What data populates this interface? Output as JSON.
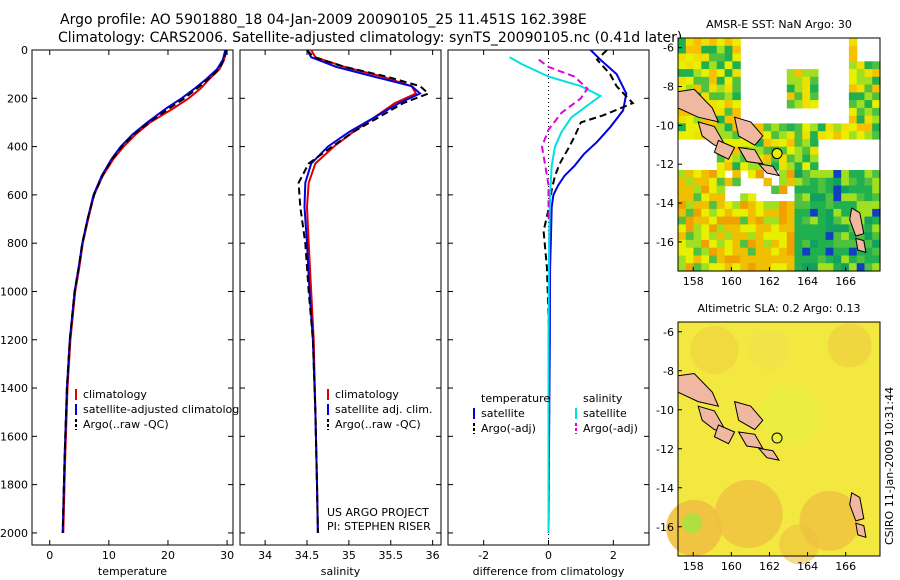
{
  "header": {
    "title_line1": "Argo profile: AO 5901880_18 04-Jan-2009 20090105_25 11.451S 162.398E",
    "title_line2": "Climatology: CARS2006. Satellite-adjusted climatology: synTS_20090105.nc (0.41d later)"
  },
  "chart_data": [
    {
      "type": "line",
      "name": "temperature-profile",
      "xlabel": "temperature",
      "ylabel": "",
      "xlim": [
        -3,
        31
      ],
      "ylim": [
        2050,
        0
      ],
      "xticks": [
        0,
        10,
        20,
        30
      ],
      "yticks": [
        0,
        200,
        400,
        600,
        800,
        1000,
        1200,
        1400,
        1600,
        1800,
        2000
      ],
      "legend": [
        "climatology",
        "satellite-adjusted climatology",
        "Argo(..raw -QC)"
      ],
      "series": [
        {
          "name": "climatology",
          "color": "#e00000",
          "x": [
            29.8,
            29.5,
            28.7,
            27.0,
            25.5,
            23.5,
            21.0,
            17.0,
            14.5,
            12.5,
            10.8,
            9.0,
            7.5,
            6.5,
            5.6,
            5.0,
            4.3,
            3.5,
            3.0,
            2.6,
            2.3
          ],
          "y": [
            0,
            40,
            80,
            120,
            160,
            200,
            240,
            300,
            350,
            400,
            450,
            520,
            600,
            700,
            800,
            900,
            1000,
            1200,
            1400,
            1700,
            2000
          ]
        },
        {
          "name": "satellite-adjusted climatology",
          "color": "#0000e0",
          "x": [
            29.7,
            29.3,
            28.3,
            26.5,
            24.5,
            22.3,
            19.8,
            16.5,
            14.0,
            12.0,
            10.5,
            8.8,
            7.4,
            6.4,
            5.5,
            4.9,
            4.2,
            3.4,
            2.9,
            2.5,
            2.2
          ],
          "y": [
            0,
            40,
            80,
            120,
            160,
            200,
            240,
            300,
            350,
            400,
            450,
            520,
            600,
            700,
            800,
            900,
            1000,
            1200,
            1400,
            1700,
            2000
          ]
        },
        {
          "name": "Argo(..raw -QC)",
          "color": "#000000",
          "dash": true,
          "x": [
            29.9,
            29.5,
            28.6,
            26.8,
            24.9,
            22.8,
            20.3,
            16.8,
            14.2,
            12.2,
            10.6,
            8.9,
            7.5,
            6.4,
            5.5,
            4.9,
            4.2,
            3.4,
            2.9,
            2.5,
            2.2
          ],
          "y": [
            0,
            40,
            80,
            120,
            160,
            200,
            240,
            300,
            350,
            400,
            450,
            520,
            600,
            700,
            800,
            900,
            1000,
            1200,
            1400,
            1700,
            2000
          ]
        }
      ]
    },
    {
      "type": "line",
      "name": "salinity-profile",
      "xlabel": "salinity",
      "xlim": [
        33.7,
        36.1
      ],
      "ylim": [
        2050,
        0
      ],
      "xticks": [
        34,
        34.5,
        35,
        35.5,
        36
      ],
      "legend": [
        "climatology",
        "satellite adj. clim.",
        "Argo(..raw -QC)"
      ],
      "series": [
        {
          "name": "climatology",
          "color": "#e00000",
          "x": [
            34.55,
            34.6,
            34.95,
            35.4,
            35.75,
            35.8,
            35.55,
            35.3,
            35.05,
            34.82,
            34.6,
            34.52,
            34.5,
            34.52,
            34.55,
            34.58,
            34.6,
            34.62,
            34.63
          ],
          "y": [
            0,
            30,
            70,
            110,
            150,
            180,
            220,
            280,
            340,
            400,
            470,
            550,
            650,
            800,
            1000,
            1200,
            1500,
            1800,
            2000
          ]
        },
        {
          "name": "satellite adj. clim.",
          "color": "#0000e0",
          "x": [
            34.5,
            34.55,
            34.85,
            35.3,
            35.75,
            35.85,
            35.6,
            35.3,
            35.0,
            34.75,
            34.55,
            34.48,
            34.47,
            34.5,
            34.53,
            34.57,
            34.6,
            34.62,
            34.63
          ],
          "y": [
            0,
            30,
            70,
            110,
            150,
            180,
            220,
            280,
            340,
            400,
            470,
            550,
            650,
            800,
            1000,
            1200,
            1500,
            1800,
            2000
          ]
        },
        {
          "name": "Argo(..raw -QC)",
          "color": "#000000",
          "dash": true,
          "x": [
            34.5,
            34.58,
            34.95,
            35.45,
            35.85,
            35.95,
            35.65,
            35.35,
            35.05,
            34.8,
            34.52,
            34.4,
            34.42,
            34.48,
            34.52,
            34.57,
            34.6,
            34.62,
            34.63
          ],
          "y": [
            0,
            30,
            70,
            110,
            150,
            180,
            220,
            280,
            340,
            400,
            470,
            550,
            650,
            800,
            1000,
            1200,
            1500,
            1800,
            2000
          ]
        }
      ]
    },
    {
      "type": "line",
      "name": "difference-profile",
      "xlabel": "difference from climatology",
      "xlim": [
        -3.1,
        3.1
      ],
      "ylim": [
        2050,
        0
      ],
      "xticks": [
        -2,
        0,
        2
      ],
      "legend_titles": [
        "temperature",
        "salinity"
      ],
      "legend": [
        "satellite",
        "Argo(-adj)",
        "satellite",
        "Argo(-adj)"
      ],
      "series": [
        {
          "name": "temperature satellite",
          "color": "#0000e0",
          "x": [
            1.3,
            1.6,
            2.1,
            2.4,
            2.3,
            1.9,
            1.5,
            1.1,
            0.8,
            0.5,
            0.3,
            0.15,
            0.1,
            0.08,
            0.05,
            0.04,
            0.02,
            0.0
          ],
          "y": [
            0,
            40,
            100,
            180,
            250,
            320,
            380,
            430,
            480,
            520,
            560,
            600,
            650,
            750,
            900,
            1200,
            1600,
            2000
          ]
        },
        {
          "name": "temperature Argo(-adj)",
          "color": "#000000",
          "dash": true,
          "x": [
            1.8,
            1.5,
            1.9,
            2.1,
            2.6,
            1.7,
            1.0,
            0.8,
            0.6,
            0.35,
            0.2,
            0.1,
            0.0,
            -0.15,
            -0.05,
            0.0,
            0.02,
            0.0
          ],
          "y": [
            0,
            40,
            100,
            150,
            220,
            270,
            300,
            360,
            410,
            470,
            520,
            580,
            660,
            750,
            900,
            1100,
            1500,
            2000
          ]
        },
        {
          "name": "salinity satellite",
          "color": "#00e0e0",
          "x": [
            -1.2,
            -0.8,
            0.0,
            1.0,
            1.6,
            1.2,
            0.7,
            0.4,
            0.2,
            0.1,
            0.05,
            0.02,
            0.0,
            0.0
          ],
          "y": [
            30,
            60,
            110,
            150,
            190,
            230,
            280,
            340,
            400,
            480,
            600,
            800,
            1200,
            2000
          ]
        },
        {
          "name": "salinity Argo(-adj)",
          "color": "#e000e0",
          "dash": true,
          "x": [
            -0.3,
            0.0,
            0.8,
            1.2,
            1.0,
            0.4,
            0.0,
            -0.2,
            -0.1,
            0.0,
            0.0
          ],
          "y": [
            40,
            70,
            110,
            160,
            200,
            260,
            330,
            400,
            480,
            560,
            700
          ]
        }
      ]
    },
    {
      "type": "heatmap",
      "name": "sst-map",
      "title": "AMSR-E SST: NaN Argo: 30",
      "xlim": [
        157.2,
        167.8
      ],
      "ylim": [
        -17.5,
        -5.5
      ],
      "xticks": [
        158,
        160,
        162,
        164,
        166
      ],
      "yticks": [
        -6,
        -8,
        -10,
        -12,
        -14,
        -16
      ],
      "marker": {
        "lon": 162.398,
        "lat": -11.451
      }
    },
    {
      "type": "heatmap",
      "name": "sla-map",
      "title": "Altimetric SLA: 0.2 Argo: 0.13",
      "xlim": [
        157.2,
        167.8
      ],
      "ylim": [
        -17.5,
        -5.5
      ],
      "xticks": [
        158,
        160,
        162,
        164,
        166
      ],
      "yticks": [
        -6,
        -8,
        -10,
        -12,
        -14,
        -16
      ],
      "marker": {
        "lon": 162.398,
        "lat": -11.451
      }
    }
  ],
  "annotations": {
    "project_line1": "US ARGO PROJECT",
    "project_line2": "PI: STEPHEN RISER",
    "csiro": "CSIRO 11-Jan-2009 10:31:44"
  }
}
